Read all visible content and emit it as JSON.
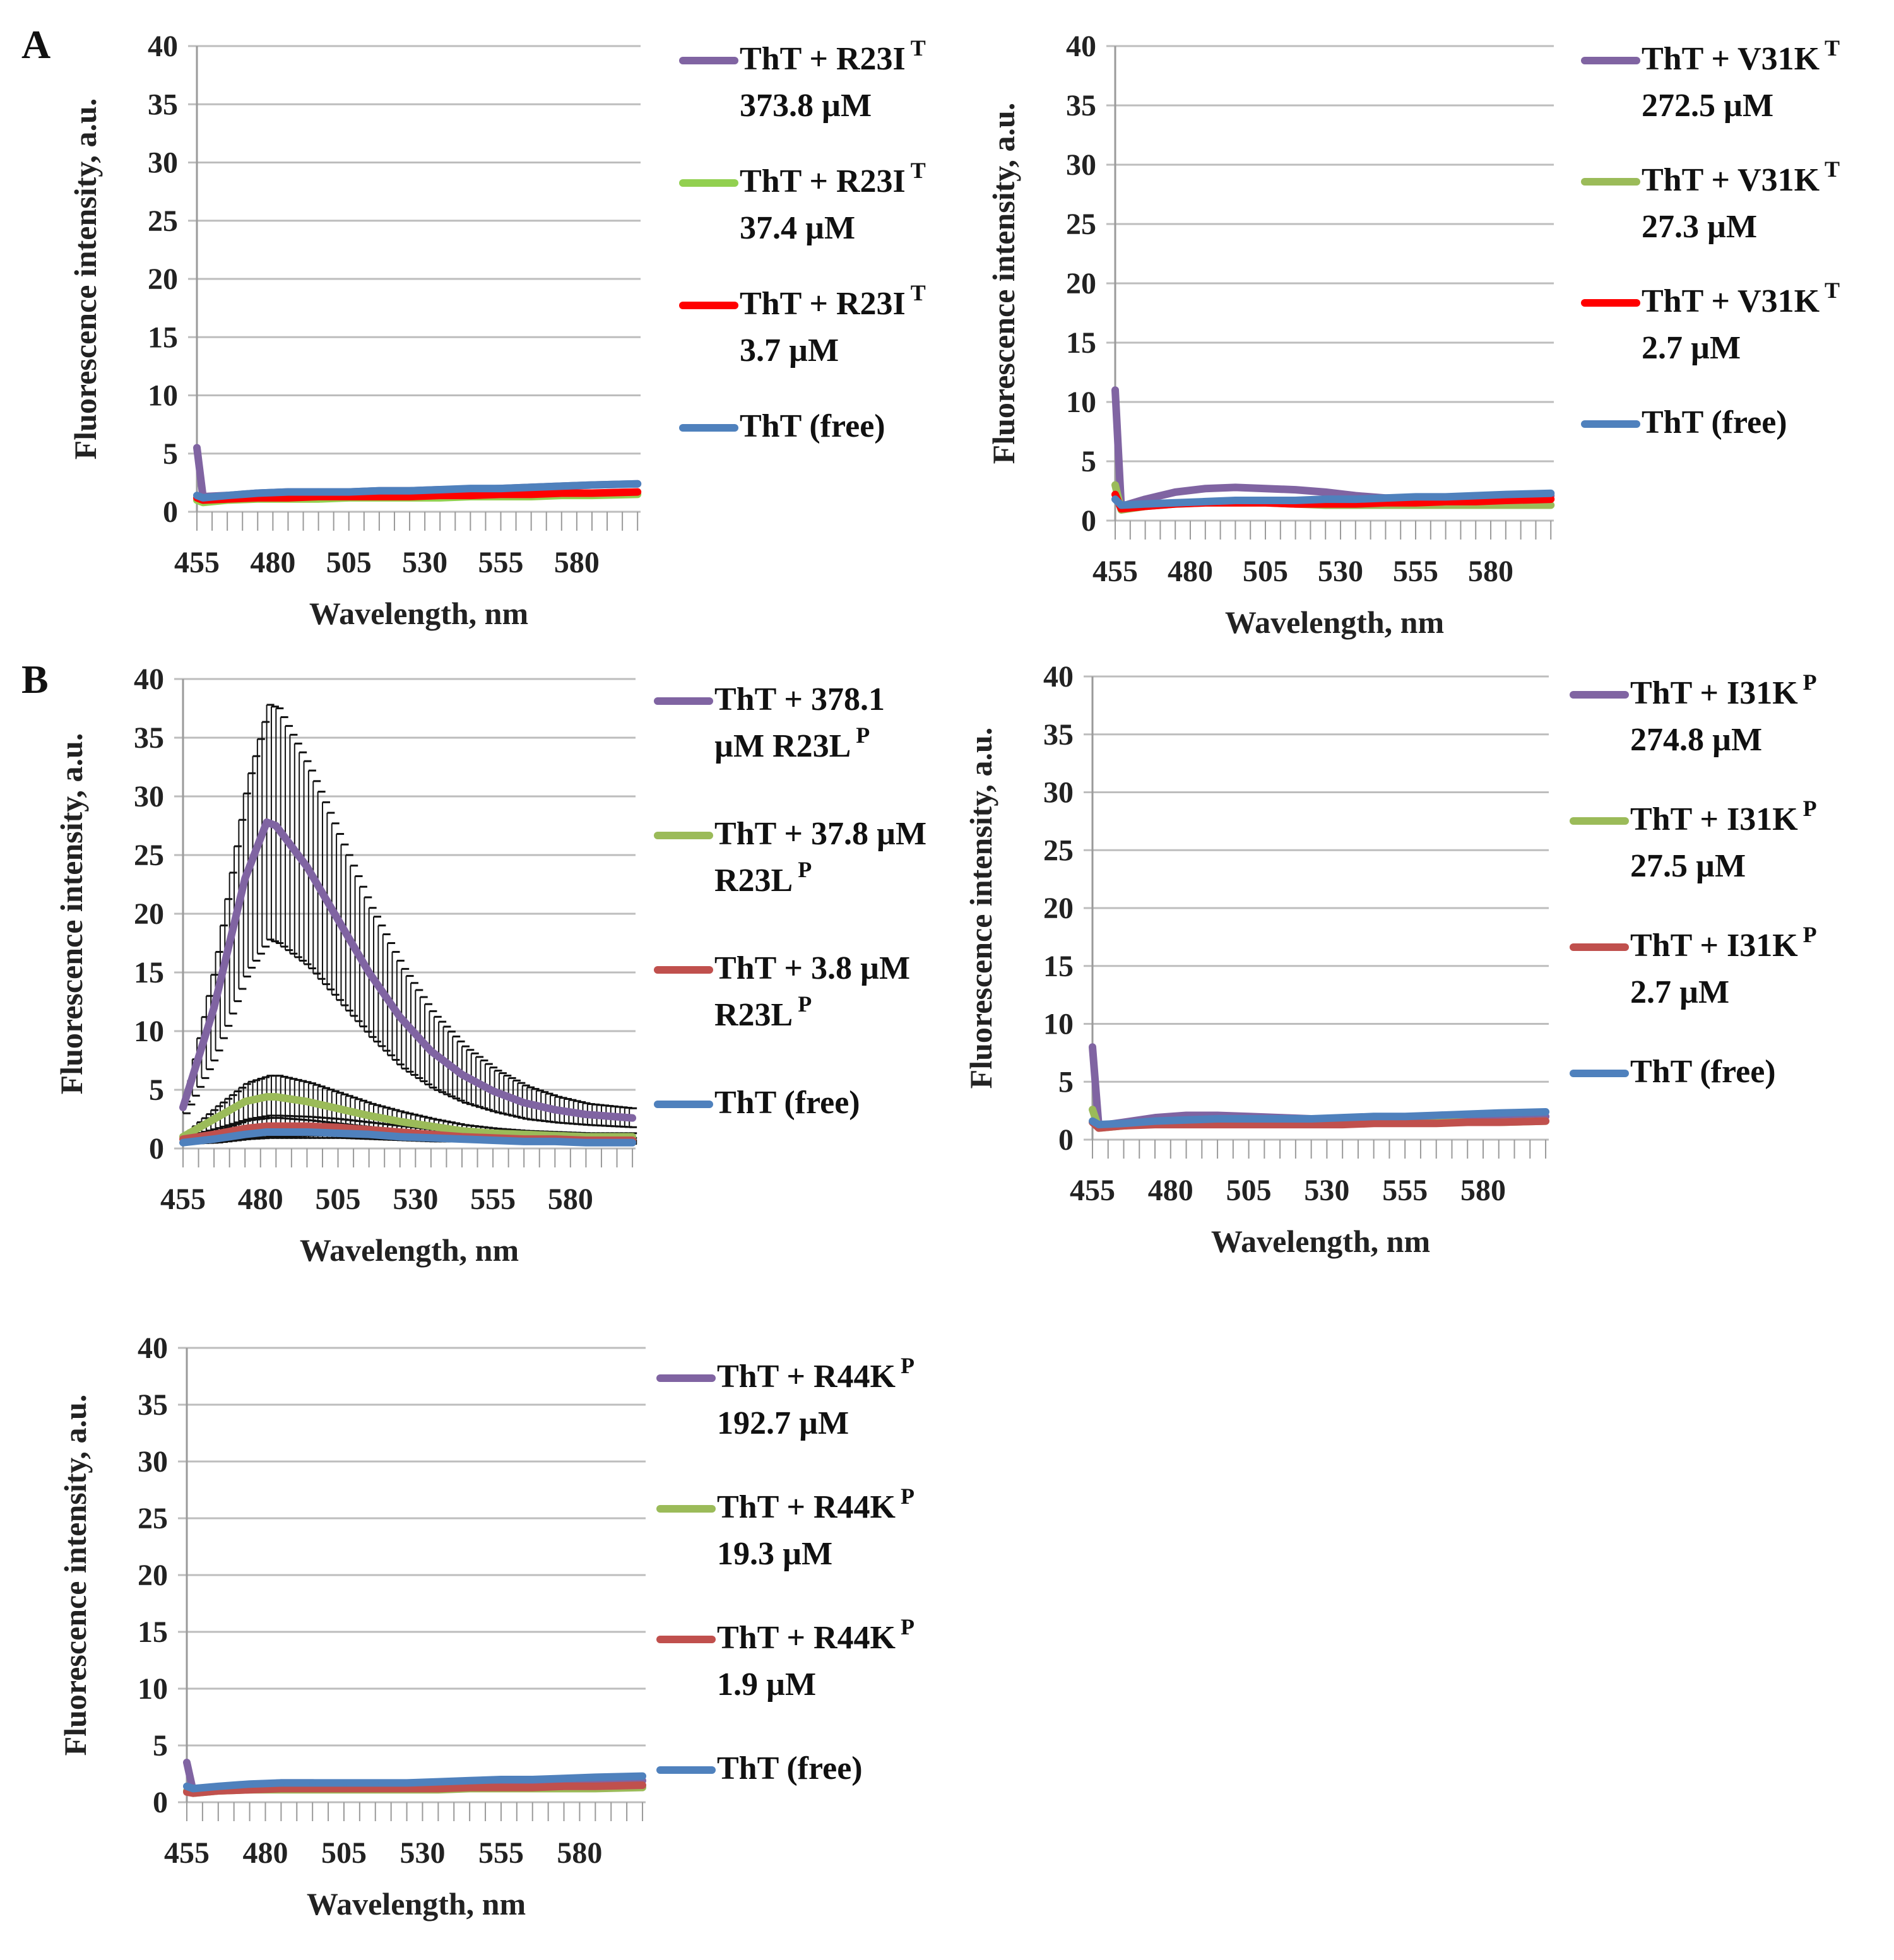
{
  "panel_labels": [
    "A",
    "B"
  ],
  "chart_data": [
    {
      "id": "a-left",
      "type": "line",
      "xlabel": "Wavelength, nm",
      "ylabel": "Fluorescence intensity, a.u.",
      "xlim": [
        455,
        601
      ],
      "ylim": [
        0,
        40
      ],
      "grid": true,
      "legend": "right",
      "xticks": [
        455,
        480,
        505,
        530,
        555,
        580
      ],
      "yticks": [
        0,
        5,
        10,
        15,
        20,
        25,
        30,
        35,
        40
      ],
      "x": [
        455,
        457,
        465,
        475,
        485,
        495,
        505,
        515,
        525,
        535,
        545,
        555,
        565,
        575,
        585,
        600
      ],
      "series": [
        {
          "name": "ThT + R23I T 373.8 µM",
          "lines": [
            {
              "text": "ThT + R23I",
              "sup": "T"
            },
            {
              "text": "373.8 µM"
            }
          ],
          "color": "#8064a2",
          "values": [
            5.5,
            1.3,
            1.4,
            1.6,
            1.7,
            1.7,
            1.7,
            1.8,
            1.8,
            1.9,
            1.9,
            2.0,
            2.1,
            2.2,
            2.3,
            2.4
          ]
        },
        {
          "name": "ThT + R23I T 37.4 µM",
          "lines": [
            {
              "text": "ThT + R23I",
              "sup": "T"
            },
            {
              "text": "37.4 µM"
            }
          ],
          "color": "#92d050",
          "values": [
            1.0,
            0.8,
            1.0,
            1.1,
            1.1,
            1.1,
            1.2,
            1.2,
            1.2,
            1.2,
            1.3,
            1.3,
            1.3,
            1.4,
            1.4,
            1.5
          ]
        },
        {
          "name": "ThT + R23I T 3.7 µM",
          "lines": [
            {
              "text": "ThT + R23I",
              "sup": "T"
            },
            {
              "text": "3.7 µM"
            }
          ],
          "color": "#ff0000",
          "values": [
            1.2,
            1.0,
            1.1,
            1.2,
            1.2,
            1.3,
            1.3,
            1.3,
            1.3,
            1.4,
            1.4,
            1.5,
            1.5,
            1.6,
            1.6,
            1.7
          ]
        },
        {
          "name": "ThT (free)",
          "lines": [
            {
              "text": "ThT (free)"
            }
          ],
          "color": "#4f81bd",
          "values": [
            1.4,
            1.2,
            1.4,
            1.6,
            1.7,
            1.7,
            1.7,
            1.8,
            1.8,
            1.9,
            2.0,
            2.0,
            2.1,
            2.2,
            2.3,
            2.4
          ]
        }
      ]
    },
    {
      "id": "a-right",
      "type": "line",
      "xlabel": "Wavelength, nm",
      "ylabel": "Fluorescence intensity, a.u.",
      "xlim": [
        455,
        601
      ],
      "ylim": [
        0,
        40
      ],
      "grid": true,
      "legend": "right",
      "xticks": [
        455,
        480,
        505,
        530,
        555,
        580
      ],
      "yticks": [
        0,
        5,
        10,
        15,
        20,
        25,
        30,
        35,
        40
      ],
      "x": [
        455,
        457,
        465,
        475,
        485,
        495,
        505,
        515,
        525,
        535,
        545,
        555,
        565,
        575,
        585,
        600
      ],
      "series": [
        {
          "name": "ThT + V31K T 272.5 µM",
          "lines": [
            {
              "text": "ThT + V31K",
              "sup": "T"
            },
            {
              "text": "272.5 µM"
            }
          ],
          "color": "#8064a2",
          "values": [
            11,
            1.2,
            1.8,
            2.4,
            2.7,
            2.8,
            2.7,
            2.6,
            2.4,
            2.1,
            1.9,
            1.9,
            1.9,
            1.9,
            2.0,
            2.1
          ]
        },
        {
          "name": "ThT + V31K T 27.3 µM",
          "lines": [
            {
              "text": "ThT + V31K",
              "sup": "T"
            },
            {
              "text": "27.3 µM"
            }
          ],
          "color": "#9bbb59",
          "values": [
            3,
            0.9,
            1.2,
            1.4,
            1.5,
            1.5,
            1.5,
            1.4,
            1.3,
            1.3,
            1.3,
            1.3,
            1.3,
            1.3,
            1.3,
            1.3
          ]
        },
        {
          "name": "ThT + V31K T 2.7 µM",
          "lines": [
            {
              "text": "ThT + V31K",
              "sup": "T"
            },
            {
              "text": "2.7 µM"
            }
          ],
          "color": "#ff0000",
          "values": [
            2.2,
            1.0,
            1.2,
            1.4,
            1.5,
            1.5,
            1.5,
            1.4,
            1.4,
            1.4,
            1.5,
            1.5,
            1.6,
            1.6,
            1.7,
            1.8
          ]
        },
        {
          "name": "ThT (free)",
          "lines": [
            {
              "text": "ThT (free)"
            }
          ],
          "color": "#4f81bd",
          "values": [
            1.8,
            1.3,
            1.4,
            1.5,
            1.6,
            1.7,
            1.7,
            1.7,
            1.8,
            1.8,
            1.9,
            2.0,
            2.0,
            2.1,
            2.2,
            2.3
          ]
        }
      ]
    },
    {
      "id": "b-left",
      "type": "line",
      "xlabel": "Wavelength, nm",
      "ylabel": "Fluorescence intensity, a.u.",
      "xlim": [
        455,
        601
      ],
      "ylim": [
        0,
        40
      ],
      "grid": true,
      "legend": "right",
      "xticks": [
        455,
        480,
        505,
        530,
        555,
        580
      ],
      "yticks": [
        0,
        5,
        10,
        15,
        20,
        25,
        30,
        35,
        40
      ],
      "x": [
        455,
        465,
        475,
        482,
        485,
        495,
        505,
        515,
        525,
        535,
        545,
        555,
        565,
        575,
        585,
        600
      ],
      "series": [
        {
          "name": "ThT + 378.1 µM R23L P",
          "lines": [
            {
              "text": "ThT + 378.1"
            },
            {
              "text": "µM R23L",
              "sup": "P"
            }
          ],
          "color": "#8064a2",
          "values": [
            3.5,
            12,
            23,
            27.8,
            27.5,
            24,
            19.5,
            15,
            11.2,
            8.3,
            6.3,
            4.9,
            3.9,
            3.3,
            2.9,
            2.6
          ],
          "errors": [
            0.5,
            4,
            8,
            10,
            10,
            8.5,
            7,
            5.5,
            4.3,
            3.2,
            2.4,
            1.8,
            1.4,
            1.1,
            0.9,
            0.8
          ]
        },
        {
          "name": "ThT + 37.8 µM R23L P",
          "lines": [
            {
              "text": "ThT +  37.8 µM"
            },
            {
              "text": "R23L",
              "sup": "P"
            }
          ],
          "color": "#9bbb59",
          "values": [
            1.0,
            2.5,
            4.0,
            4.4,
            4.4,
            4.0,
            3.4,
            2.8,
            2.3,
            1.9,
            1.5,
            1.3,
            1.2,
            1.1,
            1.0,
            1.0
          ],
          "errors": [
            0.2,
            1.0,
            1.6,
            1.8,
            1.8,
            1.6,
            1.3,
            1.0,
            0.8,
            0.6,
            0.5,
            0.4,
            0.3,
            0.3,
            0.3,
            0.3
          ]
        },
        {
          "name": "ThT + 3.8 µM R23L P",
          "lines": [
            {
              "text": "ThT + 3.8 µM"
            },
            {
              "text": "R23L",
              "sup": "P"
            }
          ],
          "color": "#c0504d",
          "values": [
            0.8,
            1.2,
            1.7,
            1.9,
            1.9,
            1.9,
            1.8,
            1.6,
            1.4,
            1.2,
            1.0,
            0.9,
            0.8,
            0.8,
            0.7,
            0.7
          ],
          "errors": [
            0.2,
            0.5,
            0.8,
            0.9,
            0.9,
            0.8,
            0.7,
            0.6,
            0.5,
            0.4,
            0.3,
            0.3,
            0.2,
            0.2,
            0.2,
            0.2
          ]
        },
        {
          "name": "ThT (free)",
          "lines": [
            {
              "text": "ThT (free)"
            }
          ],
          "color": "#4f81bd",
          "values": [
            0.5,
            0.8,
            1.2,
            1.4,
            1.4,
            1.4,
            1.3,
            1.2,
            1.0,
            0.9,
            0.8,
            0.7,
            0.6,
            0.6,
            0.5,
            0.5
          ],
          "errors": [
            0.1,
            0.3,
            0.4,
            0.5,
            0.5,
            0.5,
            0.4,
            0.4,
            0.3,
            0.3,
            0.2,
            0.2,
            0.2,
            0.2,
            0.1,
            0.1
          ]
        }
      ]
    },
    {
      "id": "b-right",
      "type": "line",
      "xlabel": "Wavelength, nm",
      "ylabel": "Fluorescence intensity, a.u.",
      "xlim": [
        455,
        601
      ],
      "ylim": [
        0,
        40
      ],
      "grid": true,
      "legend": "right",
      "xticks": [
        455,
        480,
        505,
        530,
        555,
        580
      ],
      "yticks": [
        0,
        5,
        10,
        15,
        20,
        25,
        30,
        35,
        40
      ],
      "x": [
        455,
        457,
        465,
        475,
        485,
        495,
        505,
        515,
        525,
        535,
        545,
        555,
        565,
        575,
        585,
        600
      ],
      "series": [
        {
          "name": "ThT + I31K P 274.8 µM",
          "lines": [
            {
              "text": "ThT + I31K",
              "sup": "P"
            },
            {
              "text": "274.8 µM"
            }
          ],
          "color": "#8064a2",
          "values": [
            8,
            1.2,
            1.5,
            1.9,
            2.1,
            2.1,
            2.0,
            1.9,
            1.8,
            1.8,
            1.8,
            1.8,
            1.8,
            1.9,
            1.9,
            2.0
          ]
        },
        {
          "name": "ThT + I31K P 27.5 µM",
          "lines": [
            {
              "text": "ThT + I31K",
              "sup": "P"
            },
            {
              "text": "27.5 µM"
            }
          ],
          "color": "#9bbb59",
          "values": [
            2.6,
            1.0,
            1.2,
            1.4,
            1.5,
            1.5,
            1.5,
            1.5,
            1.5,
            1.5,
            1.5,
            1.5,
            1.5,
            1.5,
            1.5,
            1.6
          ]
        },
        {
          "name": "ThT + I31K P 2.7 µM",
          "lines": [
            {
              "text": "ThT + I31K",
              "sup": "P"
            },
            {
              "text": "2.7 µM"
            }
          ],
          "color": "#c0504d",
          "values": [
            1.5,
            1.0,
            1.2,
            1.3,
            1.3,
            1.3,
            1.3,
            1.3,
            1.3,
            1.3,
            1.4,
            1.4,
            1.4,
            1.5,
            1.5,
            1.6
          ]
        },
        {
          "name": "ThT (free)",
          "lines": [
            {
              "text": "ThT (free)"
            }
          ],
          "color": "#4f81bd",
          "values": [
            1.6,
            1.3,
            1.4,
            1.6,
            1.7,
            1.8,
            1.8,
            1.8,
            1.8,
            1.9,
            2.0,
            2.0,
            2.1,
            2.2,
            2.3,
            2.4
          ]
        }
      ]
    },
    {
      "id": "c",
      "type": "line",
      "xlabel": "Wavelength, nm",
      "ylabel": "Fluorescence intensity, a.u.",
      "xlim": [
        455,
        601
      ],
      "ylim": [
        0,
        40
      ],
      "grid": true,
      "legend": "right",
      "xticks": [
        455,
        480,
        505,
        530,
        555,
        580
      ],
      "yticks": [
        0,
        5,
        10,
        15,
        20,
        25,
        30,
        35,
        40
      ],
      "x": [
        455,
        457,
        465,
        475,
        485,
        495,
        505,
        515,
        525,
        535,
        545,
        555,
        565,
        575,
        585,
        600
      ],
      "series": [
        {
          "name": "ThT + R44K P 192.7 µM",
          "lines": [
            {
              "text": "ThT + R44K",
              "sup": "P"
            },
            {
              "text": "192.7 µM"
            }
          ],
          "color": "#8064a2",
          "values": [
            3.5,
            1.0,
            1.3,
            1.5,
            1.7,
            1.7,
            1.6,
            1.6,
            1.6,
            1.6,
            1.6,
            1.7,
            1.7,
            1.8,
            1.8,
            1.9
          ]
        },
        {
          "name": "ThT + R44K P 19.3 µM",
          "lines": [
            {
              "text": "ThT + R44K",
              "sup": "P"
            },
            {
              "text": "19.3 µM"
            }
          ],
          "color": "#9bbb59",
          "values": [
            1.0,
            0.8,
            1.0,
            1.1,
            1.1,
            1.1,
            1.1,
            1.1,
            1.1,
            1.1,
            1.2,
            1.2,
            1.2,
            1.2,
            1.2,
            1.3
          ]
        },
        {
          "name": "ThT + R44K P 1.9 µM",
          "lines": [
            {
              "text": "ThT + R44K",
              "sup": "P"
            },
            {
              "text": "1.9 µM"
            }
          ],
          "color": "#c0504d",
          "values": [
            0.9,
            0.8,
            1.0,
            1.1,
            1.2,
            1.2,
            1.2,
            1.2,
            1.2,
            1.2,
            1.3,
            1.3,
            1.3,
            1.4,
            1.4,
            1.5
          ]
        },
        {
          "name": "ThT (free)",
          "lines": [
            {
              "text": "ThT (free)"
            }
          ],
          "color": "#4f81bd",
          "values": [
            1.4,
            1.2,
            1.4,
            1.6,
            1.7,
            1.7,
            1.7,
            1.7,
            1.7,
            1.8,
            1.9,
            2.0,
            2.0,
            2.1,
            2.2,
            2.3
          ]
        }
      ]
    }
  ]
}
